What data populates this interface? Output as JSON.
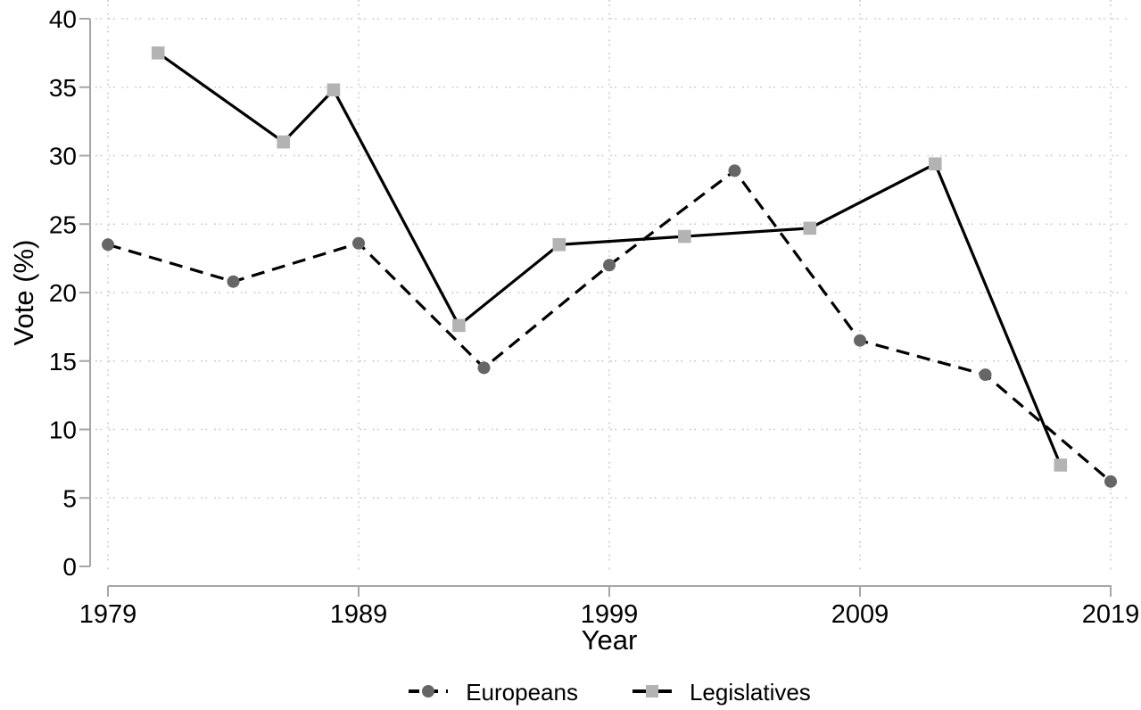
{
  "chart_data": {
    "type": "line",
    "title": "",
    "xlabel": "Year",
    "ylabel": "Vote (%)",
    "xlim": [
      1979,
      2019
    ],
    "ylim": [
      0,
      40
    ],
    "x_ticks": [
      1979,
      1989,
      1999,
      2009,
      2019
    ],
    "y_ticks": [
      0,
      5,
      10,
      15,
      20,
      25,
      30,
      35,
      40
    ],
    "grid": true,
    "legend_position": "bottom-center",
    "series": [
      {
        "name": "Europeans",
        "line_style": "dashed",
        "marker": "circle",
        "line_color": "#000000",
        "marker_color": "#666666",
        "x": [
          1979,
          1984,
          1989,
          1994,
          1999,
          2004,
          2009,
          2014,
          2019
        ],
        "values": [
          23.5,
          20.8,
          23.6,
          14.5,
          22.0,
          28.9,
          16.5,
          14.0,
          6.2
        ]
      },
      {
        "name": "Legislatives",
        "line_style": "solid",
        "marker": "square",
        "line_color": "#000000",
        "marker_color": "#b3b3b3",
        "x": [
          1981,
          1986,
          1988,
          1993,
          1997,
          2002,
          2007,
          2012,
          2017
        ],
        "values": [
          37.5,
          31.0,
          34.8,
          17.6,
          23.5,
          24.1,
          24.7,
          29.4,
          7.4
        ]
      }
    ]
  },
  "colors": {
    "axis": "#a6a6a6",
    "grid": "#c9c9c9",
    "text": "#000000",
    "background": "#ffffff"
  }
}
